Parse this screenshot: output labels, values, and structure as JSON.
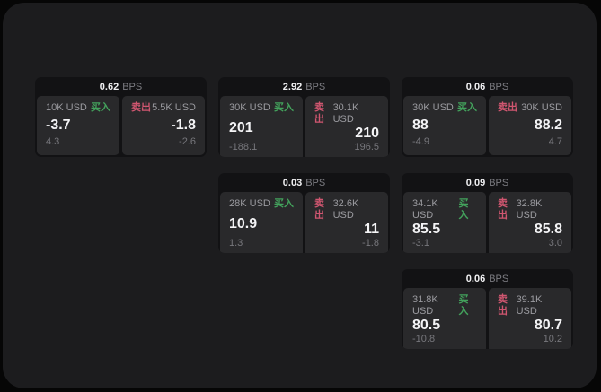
{
  "labels": {
    "bps_unit": "BPS",
    "buy": "买入",
    "sell": "卖出"
  },
  "colors": {
    "page_background": "#060606",
    "surface_background": "#1c1c1e",
    "card_background": "#121214",
    "panel_background": "#29292b",
    "buy_green": "#43a25c",
    "sell_red": "#d05670",
    "price_white": "#f4f4f6",
    "muted_gray": "#9b9ba0"
  },
  "cards": [
    {
      "row": "1",
      "col": "1",
      "bps": "0.62",
      "buy": {
        "size": "10K USD",
        "price": "-3.7",
        "delta": "4.3"
      },
      "sell": {
        "size": "5.5K USD",
        "price": "-1.8",
        "delta": "-2.6"
      }
    },
    {
      "row": "1",
      "col": "2",
      "bps": "2.92",
      "buy": {
        "size": "30K USD",
        "price": "201",
        "delta": "-188.1"
      },
      "sell": {
        "size": "30.1K USD",
        "price": "210",
        "delta": "196.5"
      }
    },
    {
      "row": "1",
      "col": "3",
      "bps": "0.06",
      "buy": {
        "size": "30K USD",
        "price": "88",
        "delta": "-4.9"
      },
      "sell": {
        "size": "30K USD",
        "price": "88.2",
        "delta": "4.7"
      }
    },
    {
      "row": "2",
      "col": "2",
      "bps": "0.03",
      "buy": {
        "size": "28K USD",
        "price": "10.9",
        "delta": "1.3"
      },
      "sell": {
        "size": "32.6K USD",
        "price": "11",
        "delta": "-1.8"
      }
    },
    {
      "row": "2",
      "col": "3",
      "bps": "0.09",
      "buy": {
        "size": "34.1K USD",
        "price": "85.5",
        "delta": "-3.1"
      },
      "sell": {
        "size": "32.8K USD",
        "price": "85.8",
        "delta": "3.0"
      }
    },
    {
      "row": "3",
      "col": "3",
      "bps": "0.06",
      "buy": {
        "size": "31.8K USD",
        "price": "80.5",
        "delta": "-10.8"
      },
      "sell": {
        "size": "39.1K USD",
        "price": "80.7",
        "delta": "10.2"
      }
    }
  ]
}
